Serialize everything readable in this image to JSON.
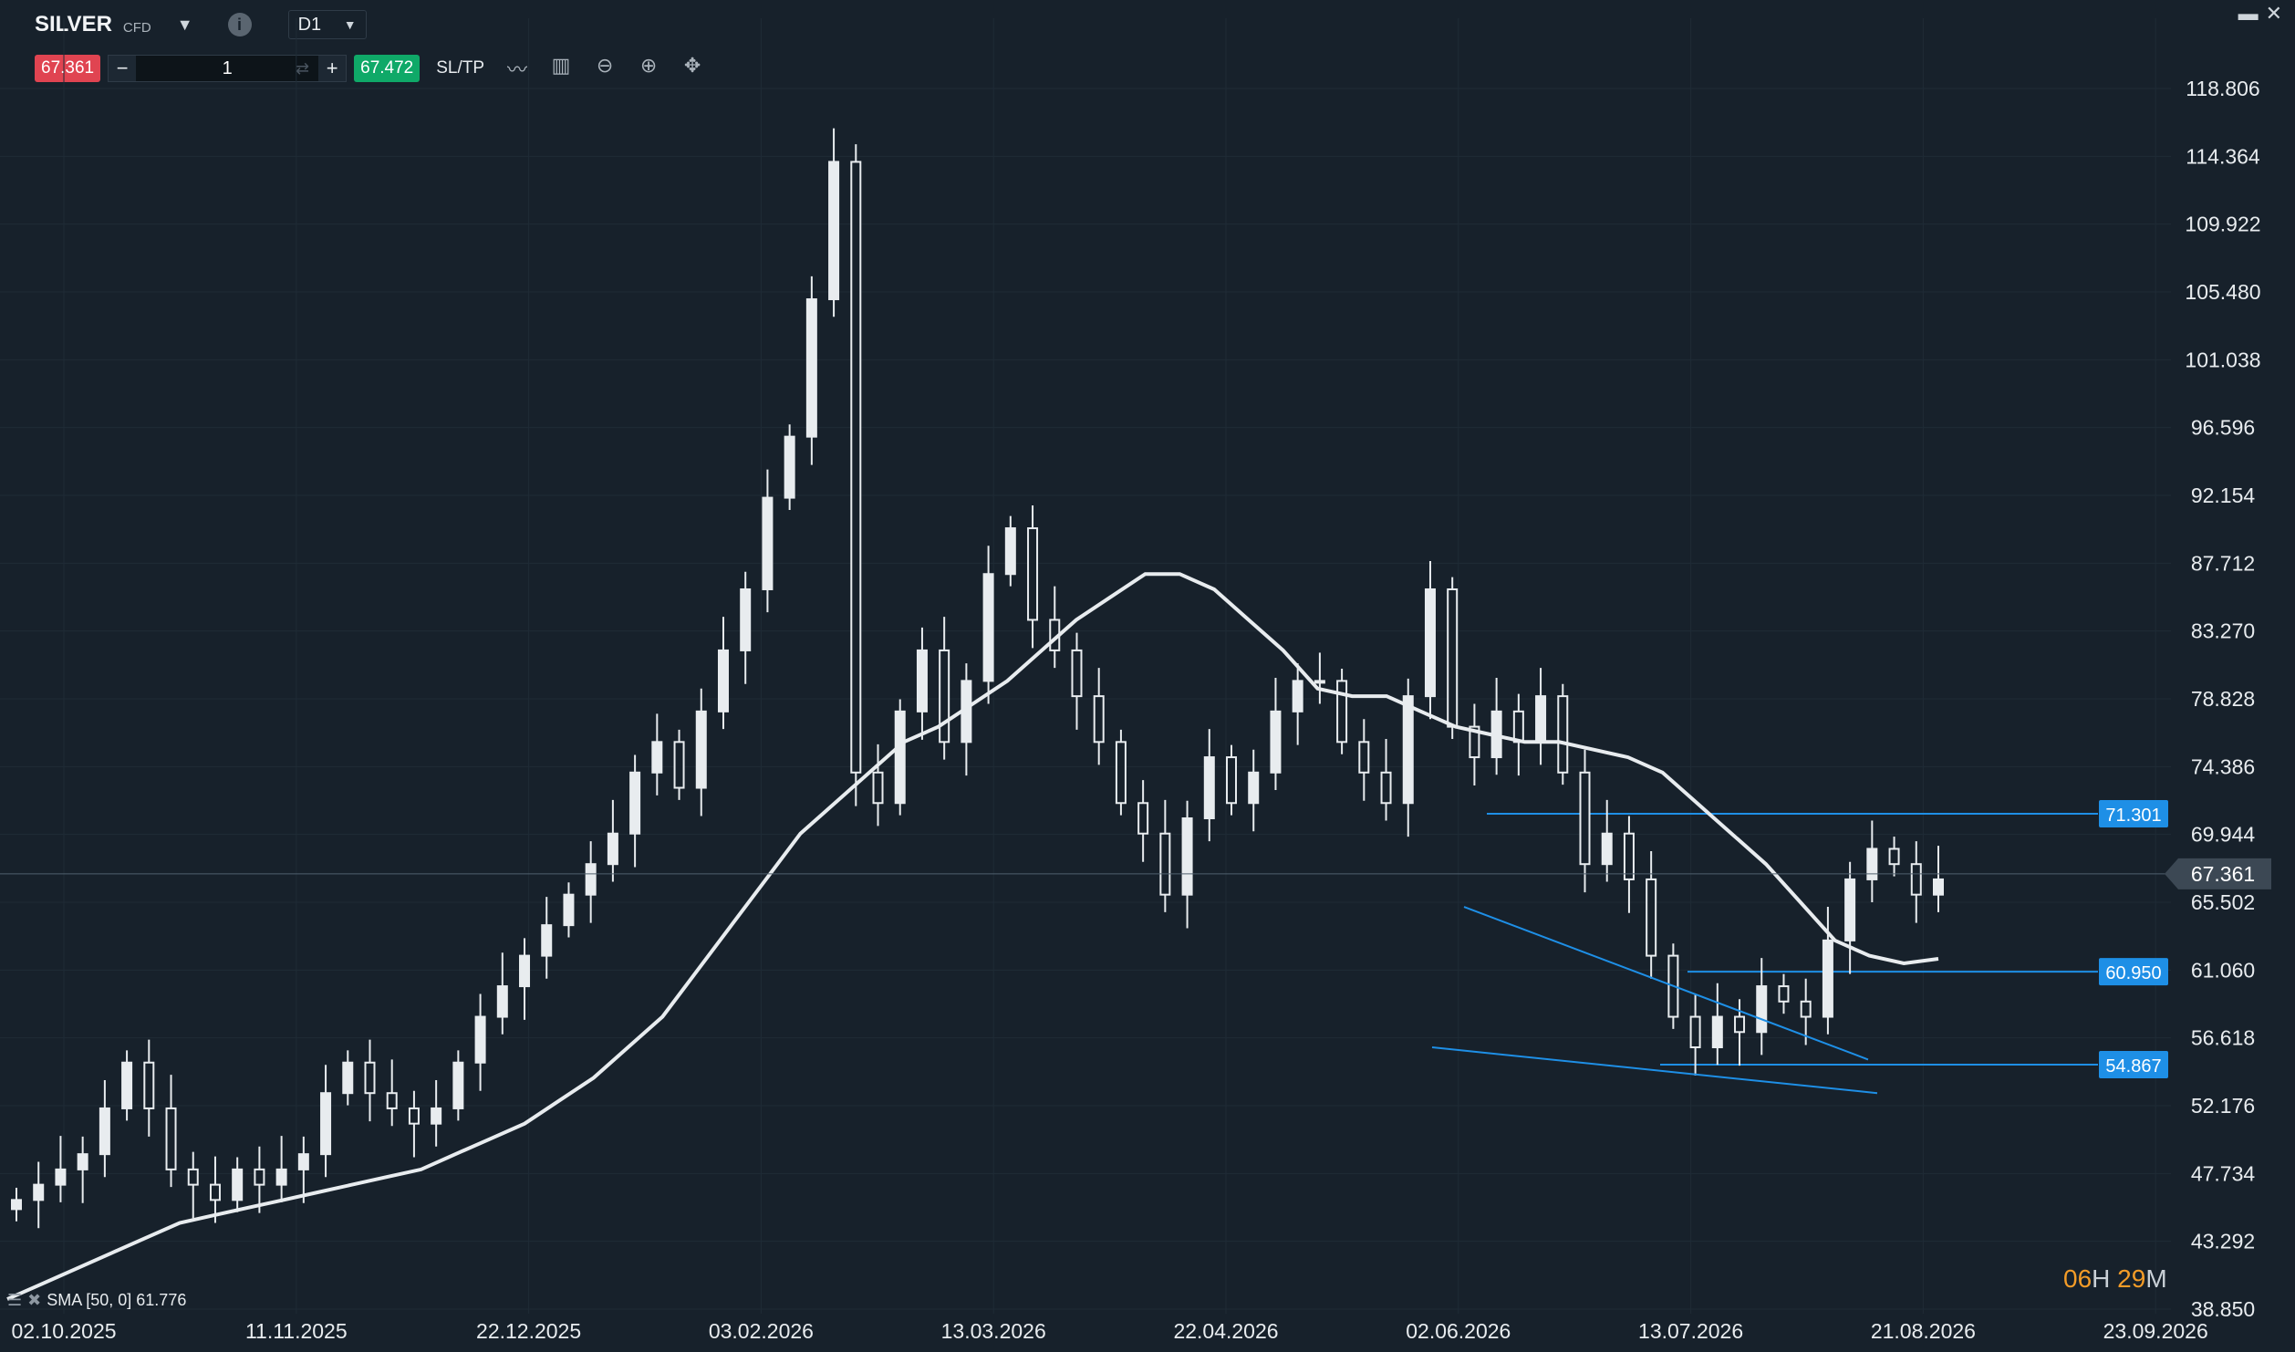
{
  "header": {
    "symbol": "SILVER",
    "symbol_type": "CFD",
    "timeframe": "D1",
    "sell_price": "67.361",
    "quantity": "1",
    "buy_price": "67.472",
    "sltp_label": "SL/TP"
  },
  "price_axis": {
    "labels": [
      "118.806",
      "114.364",
      "109.922",
      "105.480",
      "101.038",
      "96.596",
      "92.154",
      "87.712",
      "83.270",
      "78.828",
      "74.386",
      "69.944",
      "65.502",
      "61.060",
      "56.618",
      "52.176",
      "47.734",
      "43.292",
      "38.850"
    ],
    "current_price": "67.361"
  },
  "date_axis": {
    "labels": [
      "02.10.2025",
      "11.11.2025",
      "22.12.2025",
      "03.02.2026",
      "13.03.2026",
      "22.04.2026",
      "02.06.2026",
      "13.07.2026",
      "21.08.2026",
      "23.09.2026"
    ]
  },
  "levels": [
    {
      "value": "71.301"
    },
    {
      "value": "60.950"
    },
    {
      "value": "54.867"
    }
  ],
  "indicator": {
    "label": "SMA [50, 0] 61.776"
  },
  "countdown": {
    "hours": "06",
    "h_unit": "H",
    "minutes": "29",
    "m_unit": "M"
  },
  "colors": {
    "background": "#17212b",
    "sell": "#e04451",
    "buy": "#0fa968",
    "level_line": "#1e8fe6",
    "candle": "#e8ecef",
    "sma": "#e8ecef",
    "countdown_accent": "#f39c28"
  },
  "chart_data": {
    "type": "candlestick",
    "y_range": [
      38.85,
      118.806
    ],
    "x_range": [
      "02.10.2025",
      "23.09.2026"
    ],
    "last_price": 67.361,
    "horizontal_levels": [
      71.301,
      60.95,
      54.867
    ],
    "closes_approx": [
      46,
      47,
      48,
      49,
      52,
      55,
      52,
      48,
      47,
      46,
      48,
      47,
      48,
      49,
      53,
      55,
      53,
      52,
      51,
      52,
      55,
      58,
      60,
      62,
      64,
      66,
      68,
      70,
      74,
      76,
      73,
      78,
      82,
      86,
      92,
      96,
      105,
      114,
      74,
      72,
      78,
      82,
      76,
      80,
      87,
      90,
      84,
      82,
      79,
      76,
      72,
      70,
      66,
      71,
      75,
      72,
      74,
      78,
      80,
      80,
      76,
      74,
      72,
      79,
      86,
      77,
      75,
      78,
      76,
      79,
      74,
      68,
      70,
      67,
      62,
      58,
      56,
      58,
      57,
      60,
      59,
      58,
      63,
      67,
      69,
      68,
      66,
      67
    ],
    "sma50_approx": [
      39.5,
      40.5,
      41.5,
      42.5,
      43.5,
      44.5,
      45,
      45.5,
      46,
      46.5,
      47,
      47.5,
      48,
      49,
      50,
      51,
      52.5,
      54,
      56,
      58,
      61,
      64,
      67,
      70,
      72,
      74,
      76,
      77,
      78.5,
      80,
      82,
      84,
      85.5,
      87,
      87,
      86,
      84,
      82,
      79.5,
      79,
      79,
      78,
      77,
      76.5,
      76,
      76,
      75.5,
      75,
      74,
      72,
      70,
      68,
      65.5,
      63,
      62,
      61.5,
      61.8
    ]
  }
}
